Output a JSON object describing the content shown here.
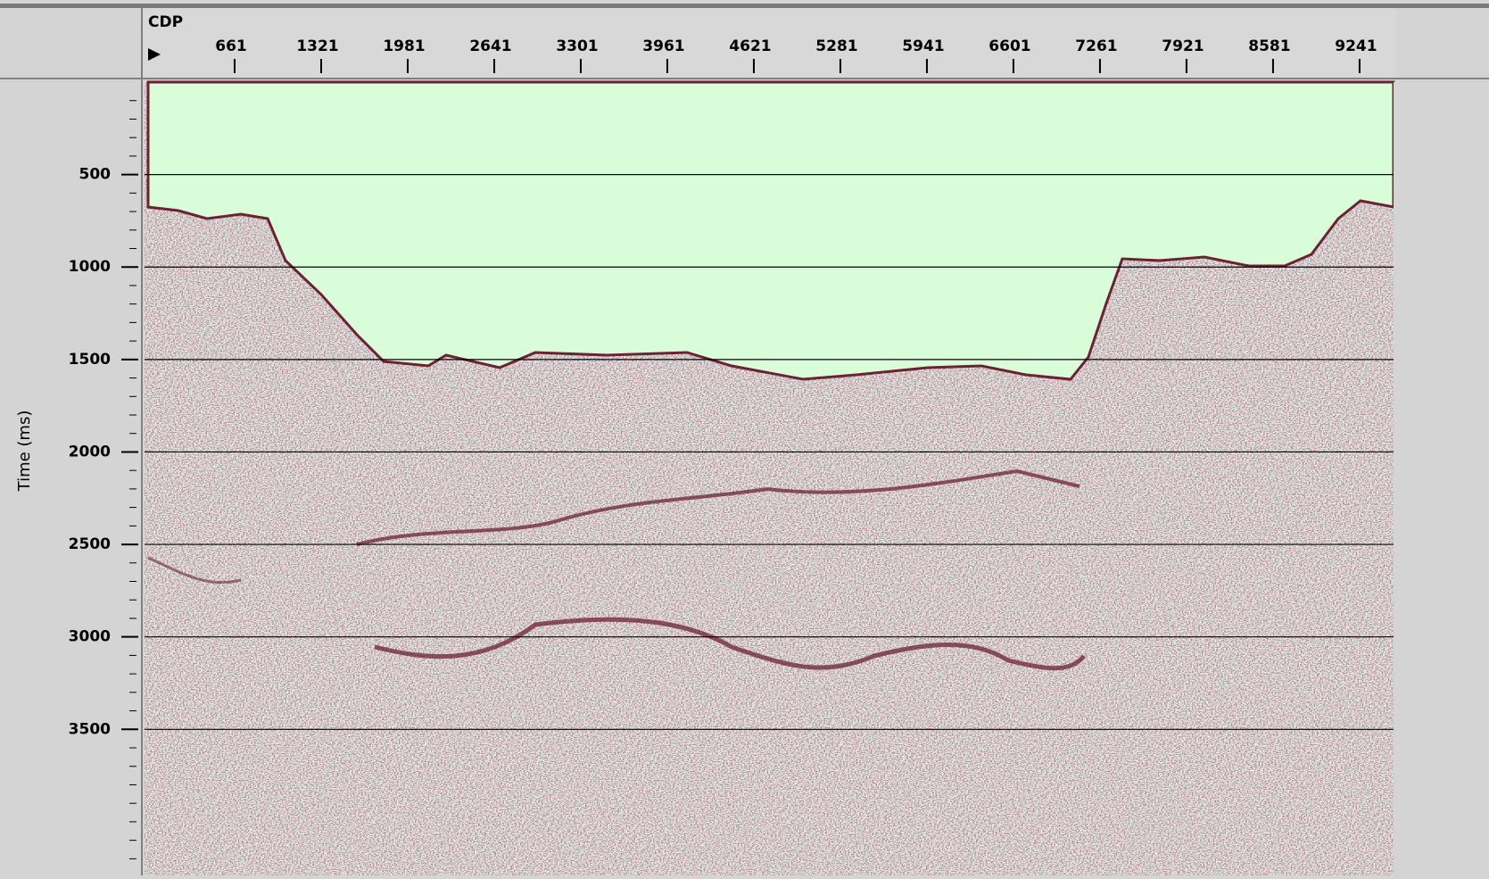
{
  "chart_data": {
    "type": "seismic",
    "xlabel": "CDP",
    "ylabel": "Time (ms)",
    "xticks": [
      661,
      1321,
      1981,
      2641,
      3301,
      3961,
      4621,
      5281,
      5941,
      6601,
      7261,
      7921,
      8581,
      9241
    ],
    "yticks": [
      500,
      1000,
      1500,
      2000,
      2500,
      3000,
      3500
    ],
    "xlim": [
      1,
      9500
    ],
    "ylim": [
      0,
      4290
    ],
    "y_inverted": true,
    "grid": true
  }
}
